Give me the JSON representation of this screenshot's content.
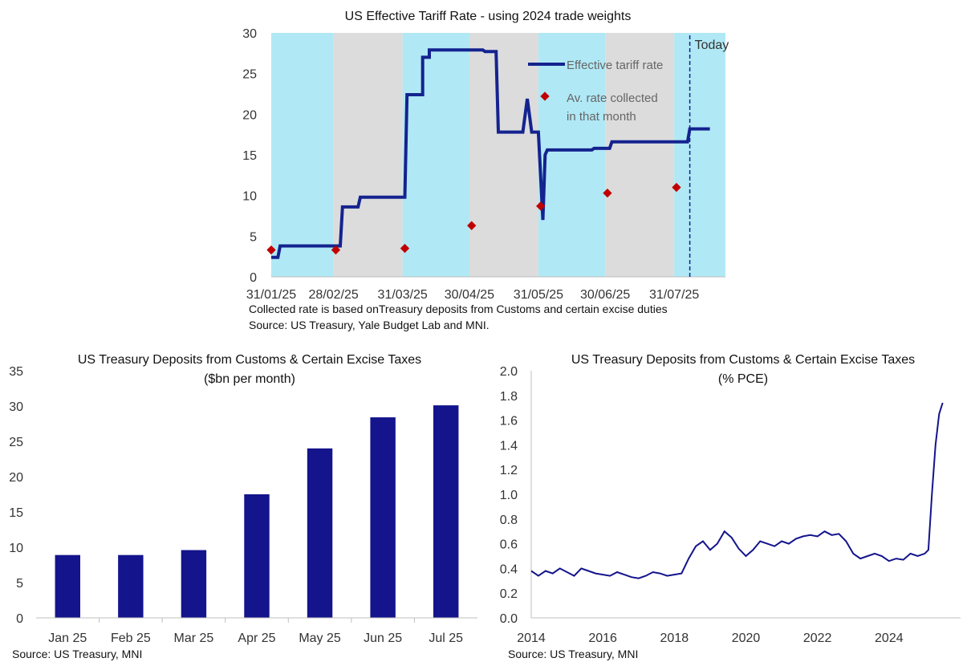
{
  "chart_data": [
    {
      "type": "line",
      "title": "US Effective Tariff Rate - using 2024 trade weights",
      "ylim": [
        0,
        30
      ],
      "y_ticks": [
        "0",
        "5",
        "10",
        "15",
        "20",
        "25",
        "30"
      ],
      "x_ticks": [
        "31/01/25",
        "28/02/25",
        "31/03/25",
        "30/04/25",
        "31/05/25",
        "30/06/25",
        "31/07/25"
      ],
      "x_range": [
        "2025-01-31",
        "2025-08-23"
      ],
      "grid": false,
      "legend_position": "top-right",
      "shading": [
        {
          "start": "2025-01-31",
          "end": "2025-02-28",
          "color": "#b0e8f5"
        },
        {
          "start": "2025-02-28",
          "end": "2025-03-31",
          "color": "#dcdcdc"
        },
        {
          "start": "2025-03-31",
          "end": "2025-04-30",
          "color": "#b0e8f5"
        },
        {
          "start": "2025-04-30",
          "end": "2025-05-31",
          "color": "#dcdcdc"
        },
        {
          "start": "2025-05-31",
          "end": "2025-06-30",
          "color": "#b0e8f5"
        },
        {
          "start": "2025-06-30",
          "end": "2025-07-31",
          "color": "#dcdcdc"
        },
        {
          "start": "2025-07-31",
          "end": "2025-08-23",
          "color": "#b0e8f5"
        }
      ],
      "today_line": {
        "date": "2025-08-07",
        "label": "Today"
      },
      "series": [
        {
          "name": "Effective tariff rate",
          "color": "#14238f",
          "kind": "line",
          "points": [
            [
              "2025-01-31",
              2.4
            ],
            [
              "2025-02-03",
              2.4
            ],
            [
              "2025-02-04",
              3.8
            ],
            [
              "2025-03-03",
              3.8
            ],
            [
              "2025-03-04",
              8.6
            ],
            [
              "2025-03-11",
              8.6
            ],
            [
              "2025-03-12",
              9.8
            ],
            [
              "2025-04-01",
              9.8
            ],
            [
              "2025-04-02",
              22.4
            ],
            [
              "2025-04-09",
              22.4
            ],
            [
              "2025-04-09",
              27.0
            ],
            [
              "2025-04-12",
              27.0
            ],
            [
              "2025-04-12",
              27.9
            ],
            [
              "2025-05-06",
              27.9
            ],
            [
              "2025-05-07",
              27.7
            ],
            [
              "2025-05-12",
              27.7
            ],
            [
              "2025-05-13",
              17.8
            ],
            [
              "2025-05-24",
              17.8
            ],
            [
              "2025-05-26",
              21.9
            ],
            [
              "2025-05-28",
              17.8
            ],
            [
              "2025-05-31",
              17.8
            ],
            [
              "2025-06-02",
              7.0
            ],
            [
              "2025-06-03",
              15.0
            ],
            [
              "2025-06-04",
              15.6
            ],
            [
              "2025-06-24",
              15.6
            ],
            [
              "2025-06-25",
              15.8
            ],
            [
              "2025-07-02",
              15.8
            ],
            [
              "2025-07-03",
              16.6
            ],
            [
              "2025-08-06",
              16.6
            ],
            [
              "2025-08-07",
              18.2
            ],
            [
              "2025-08-16",
              18.2
            ]
          ]
        },
        {
          "name": "Av. rate collected in that month",
          "name_lines": [
            "Av. rate collected",
            "in that month"
          ],
          "color": "#c00000",
          "kind": "marker",
          "points": [
            [
              "2025-01-31",
              3.3
            ],
            [
              "2025-03-01",
              3.3
            ],
            [
              "2025-04-01",
              3.5
            ],
            [
              "2025-05-01",
              6.3
            ],
            [
              "2025-06-01",
              8.7
            ],
            [
              "2025-07-01",
              10.3
            ],
            [
              "2025-08-01",
              11.0
            ]
          ]
        }
      ],
      "notes": [
        "Collected rate is  based onTreasury deposits from Customs and certain excise duties",
        "Source: US Treasury, Yale Budget Lab and MNI."
      ]
    },
    {
      "type": "bar",
      "title": "US Treasury Deposits from Customs & Certain Excise Taxes",
      "subtitle": "($bn per month)",
      "categories": [
        "Jan 25",
        "Feb 25",
        "Mar 25",
        "Apr 25",
        "May 25",
        "Jun 25",
        "Jul 25"
      ],
      "values": [
        8.9,
        8.9,
        9.6,
        17.5,
        24.0,
        28.4,
        30.1
      ],
      "ylim": [
        0,
        35
      ],
      "y_ticks": [
        "0",
        "5",
        "10",
        "15",
        "20",
        "25",
        "30",
        "35"
      ],
      "bar_color": "#14148c",
      "grid": false,
      "source": "Source: US Treasury, MNI"
    },
    {
      "type": "line",
      "title": "US Treasury Deposits from Customs & Certain Excise Taxes",
      "subtitle": "(% PCE)",
      "ylim": [
        0,
        2.0
      ],
      "y_ticks": [
        "0.0",
        "0.2",
        "0.4",
        "0.6",
        "0.8",
        "1.0",
        "1.2",
        "1.4",
        "1.6",
        "1.8",
        "2.0"
      ],
      "x_ticks": [
        "2014",
        "2016",
        "2018",
        "2020",
        "2022",
        "2024"
      ],
      "x_range": [
        2014,
        2026.0
      ],
      "line_color": "#14148c",
      "grid": false,
      "x": [
        2014.0,
        2014.2,
        2014.4,
        2014.6,
        2014.8,
        2015.0,
        2015.2,
        2015.4,
        2015.6,
        2015.8,
        2016.0,
        2016.2,
        2016.4,
        2016.6,
        2016.8,
        2017.0,
        2017.2,
        2017.4,
        2017.6,
        2017.8,
        2018.0,
        2018.2,
        2018.4,
        2018.6,
        2018.8,
        2019.0,
        2019.2,
        2019.4,
        2019.6,
        2019.8,
        2020.0,
        2020.2,
        2020.4,
        2020.6,
        2020.8,
        2021.0,
        2021.2,
        2021.4,
        2021.6,
        2021.8,
        2022.0,
        2022.2,
        2022.4,
        2022.6,
        2022.8,
        2023.0,
        2023.2,
        2023.4,
        2023.6,
        2023.8,
        2024.0,
        2024.2,
        2024.4,
        2024.6,
        2024.8,
        2025.0,
        2025.1,
        2025.2,
        2025.3,
        2025.4,
        2025.5
      ],
      "y": [
        0.38,
        0.34,
        0.38,
        0.36,
        0.4,
        0.37,
        0.34,
        0.4,
        0.38,
        0.36,
        0.35,
        0.34,
        0.37,
        0.35,
        0.33,
        0.32,
        0.34,
        0.37,
        0.36,
        0.34,
        0.35,
        0.36,
        0.48,
        0.58,
        0.62,
        0.55,
        0.6,
        0.7,
        0.65,
        0.56,
        0.5,
        0.55,
        0.62,
        0.6,
        0.58,
        0.62,
        0.6,
        0.64,
        0.66,
        0.67,
        0.66,
        0.7,
        0.67,
        0.68,
        0.62,
        0.52,
        0.48,
        0.5,
        0.52,
        0.5,
        0.46,
        0.48,
        0.47,
        0.52,
        0.5,
        0.52,
        0.55,
        1.0,
        1.4,
        1.65,
        1.74
      ],
      "source": "Source: US Treasury, MNI"
    }
  ]
}
